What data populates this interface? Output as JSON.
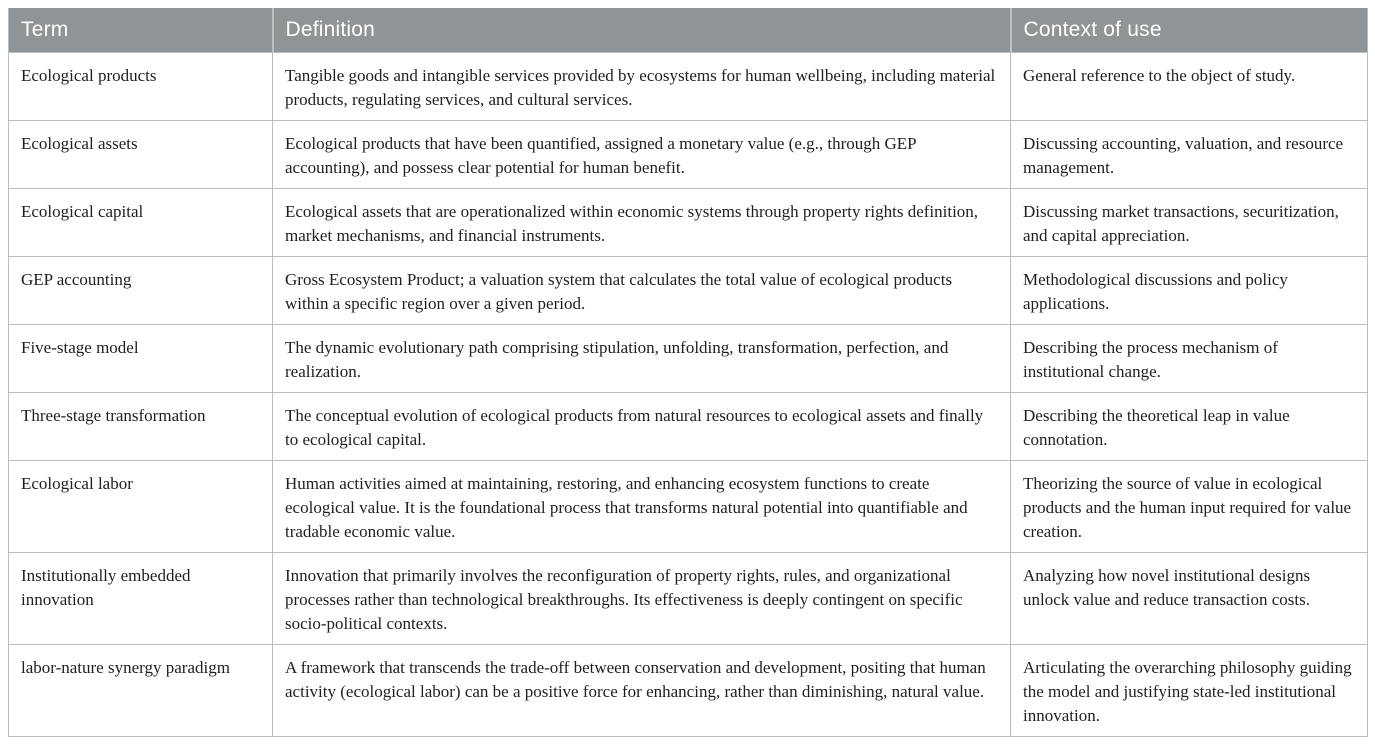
{
  "colors": {
    "header_bg": "#8f9496",
    "header_text": "#ffffff",
    "body_text": "#1f1f1f",
    "border": "#b7bbbc"
  },
  "table": {
    "columns": [
      {
        "label": "Term"
      },
      {
        "label": "Definition"
      },
      {
        "label": "Context of use"
      }
    ],
    "rows": [
      {
        "term": "Ecological products",
        "definition": "Tangible goods and intangible services provided by ecosystems for human wellbeing, including material products, regulating services, and cultural services.",
        "context": "General reference to the object of study."
      },
      {
        "term": "Ecological assets",
        "definition": "Ecological products that have been quantified, assigned a monetary value (e.g., through GEP accounting), and possess clear potential for human benefit.",
        "context": "Discussing accounting, valuation, and resource management."
      },
      {
        "term": "Ecological capital",
        "definition": "Ecological assets that are operationalized within economic systems through property rights definition, market mechanisms, and financial instruments.",
        "context": "Discussing market transactions, securitization, and capital appreciation."
      },
      {
        "term": "GEP accounting",
        "definition": "Gross Ecosystem Product; a valuation system that calculates the total value of ecological products within a specific region over a given period.",
        "context": "Methodological discussions and policy applications."
      },
      {
        "term": "Five-stage model",
        "definition": "The dynamic evolutionary path comprising stipulation, unfolding, transformation, perfection, and realization.",
        "context": "Describing the process mechanism of institutional change."
      },
      {
        "term": "Three-stage transformation",
        "definition": "The conceptual evolution of ecological products from natural resources to ecological assets and finally to ecological capital.",
        "context": "Describing the theoretical leap in value connotation."
      },
      {
        "term": "Ecological labor",
        "definition": "Human activities aimed at maintaining, restoring, and enhancing ecosystem functions to create ecological value. It is the foundational process that transforms natural potential into quantifiable and tradable economic value.",
        "context": "Theorizing the source of value in ecological products and the human input required for value creation."
      },
      {
        "term": "Institutionally embedded innovation",
        "definition": "Innovation that primarily involves the reconfiguration of property rights, rules, and organizational processes rather than technological breakthroughs. Its effectiveness is deeply contingent on specific socio-political contexts.",
        "context": "Analyzing how novel institutional designs unlock value and reduce transaction costs."
      },
      {
        "term": "labor-nature synergy paradigm",
        "definition": "A framework that transcends the trade-off between conservation and development, positing that human activity (ecological labor) can be a positive force for enhancing, rather than diminishing, natural value.",
        "context": "Articulating the overarching philosophy guiding the model and justifying state-led institutional innovation."
      }
    ]
  }
}
